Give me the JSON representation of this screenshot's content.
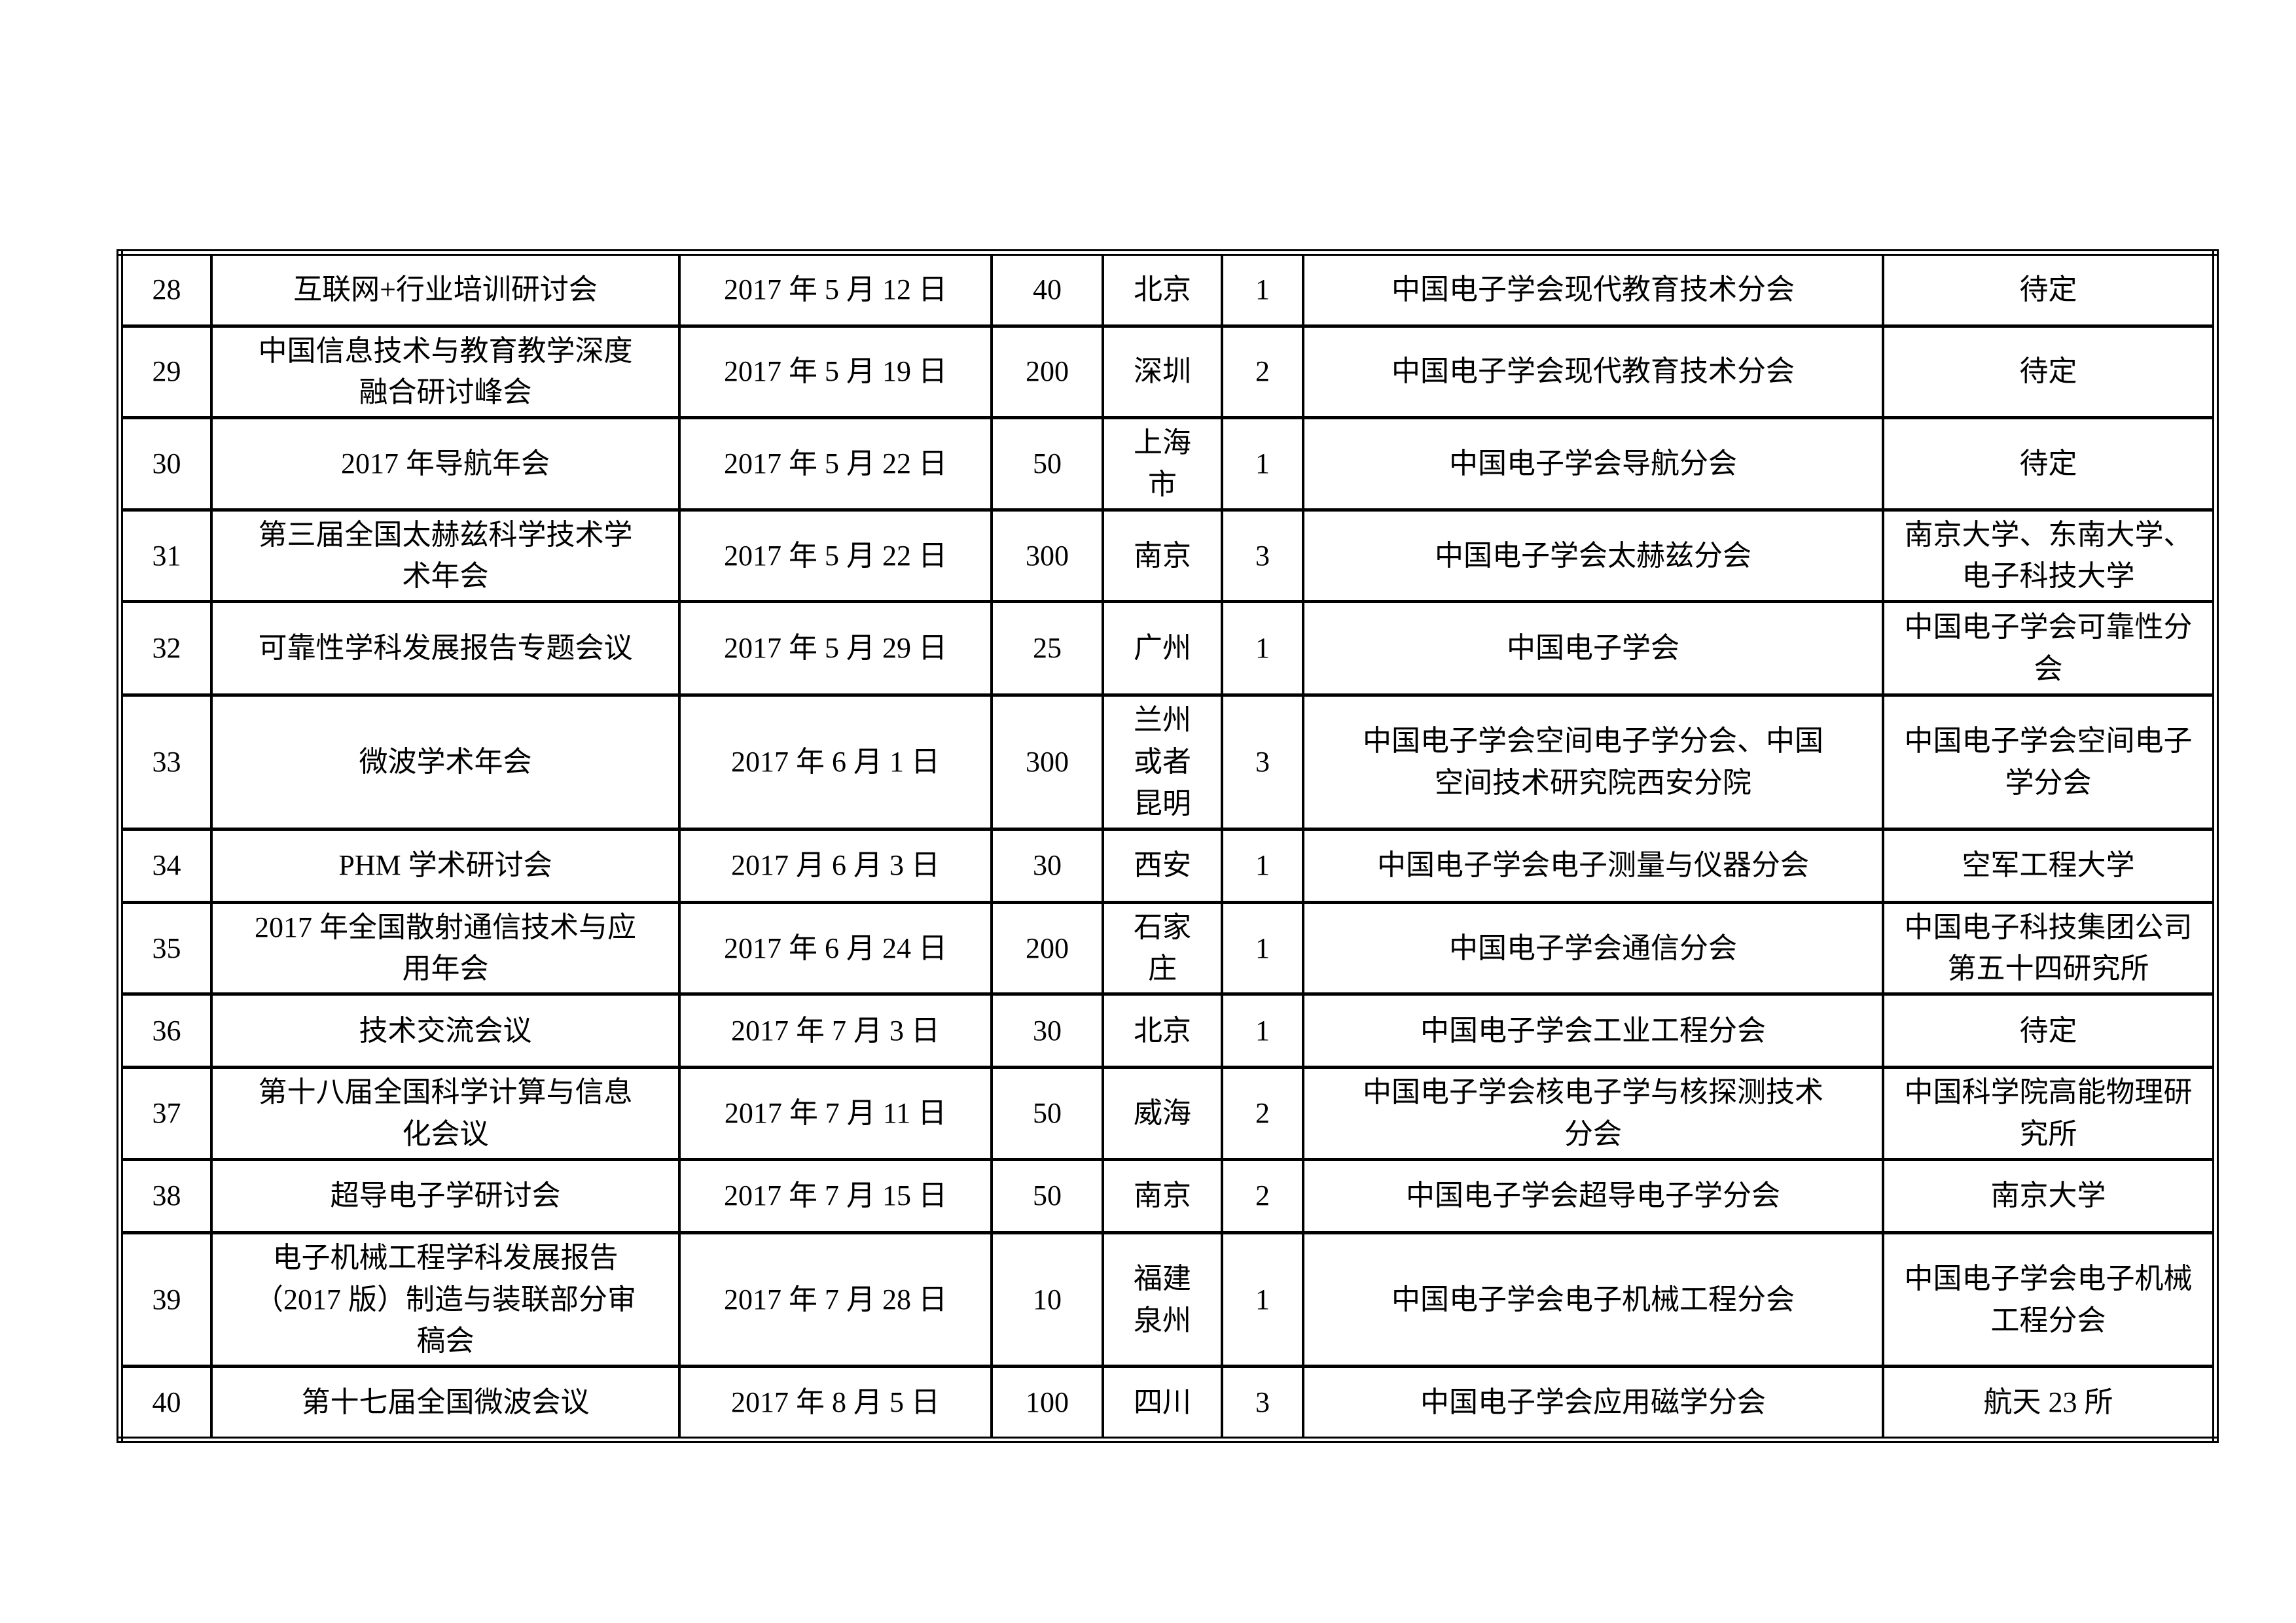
{
  "table": {
    "rows": [
      {
        "no": "28",
        "name": "互联网+行业培训研讨会",
        "date": "2017 年 5 月 12 日",
        "scale": "40",
        "city": "北京",
        "days": "1",
        "organizer": "中国电子学会现代教育技术分会",
        "support": "待定"
      },
      {
        "no": "29",
        "name": "中国信息技术与教育教学深度\n融合研讨峰会",
        "date": "2017 年 5 月 19 日",
        "scale": "200",
        "city": "深圳",
        "days": "2",
        "organizer": "中国电子学会现代教育技术分会",
        "support": "待定"
      },
      {
        "no": "30",
        "name": "2017 年导航年会",
        "date": "2017 年 5 月 22 日",
        "scale": "50",
        "city": "上海\n市",
        "days": "1",
        "organizer": "中国电子学会导航分会",
        "support": "待定"
      },
      {
        "no": "31",
        "name": "第三届全国太赫兹科学技术学\n术年会",
        "date": "2017 年 5 月 22 日",
        "scale": "300",
        "city": "南京",
        "days": "3",
        "organizer": "中国电子学会太赫兹分会",
        "support": "南京大学、东南大学、\n电子科技大学"
      },
      {
        "no": "32",
        "name": "可靠性学科发展报告专题会议",
        "date": "2017 年 5 月 29 日",
        "scale": "25",
        "city": "广州",
        "days": "1",
        "organizer": "中国电子学会",
        "support": "中国电子学会可靠性分\n会"
      },
      {
        "no": "33",
        "name": "微波学术年会",
        "date": "2017 年 6 月 1 日",
        "scale": "300",
        "city": "兰州\n或者\n昆明",
        "days": "3",
        "organizer": "中国电子学会空间电子学分会、中国\n空间技术研究院西安分院",
        "support": "中国电子学会空间电子\n学分会"
      },
      {
        "no": "34",
        "name": "PHM 学术研讨会",
        "date": "2017 月 6 月 3 日",
        "scale": "30",
        "city": "西安",
        "days": "1",
        "organizer": "中国电子学会电子测量与仪器分会",
        "support": "空军工程大学"
      },
      {
        "no": "35",
        "name": "2017 年全国散射通信技术与应\n用年会",
        "date": "2017 年 6 月 24 日",
        "scale": "200",
        "city": "石家\n庄",
        "days": "1",
        "organizer": "中国电子学会通信分会",
        "support": "中国电子科技集团公司\n第五十四研究所"
      },
      {
        "no": "36",
        "name": "技术交流会议",
        "date": "2017 年 7 月 3 日",
        "scale": "30",
        "city": "北京",
        "days": "1",
        "organizer": "中国电子学会工业工程分会",
        "support": "待定"
      },
      {
        "no": "37",
        "name": "第十八届全国科学计算与信息\n化会议",
        "date": "2017 年 7 月 11 日",
        "scale": "50",
        "city": "威海",
        "days": "2",
        "organizer": "中国电子学会核电子学与核探测技术\n分会",
        "support": "中国科学院高能物理研\n究所"
      },
      {
        "no": "38",
        "name": "超导电子学研讨会",
        "date": "2017 年 7 月 15 日",
        "scale": "50",
        "city": "南京",
        "days": "2",
        "organizer": "中国电子学会超导电子学分会",
        "support": "南京大学"
      },
      {
        "no": "39",
        "name": "电子机械工程学科发展报告\n（2017 版）制造与装联部分审\n稿会",
        "date": "2017 年 7 月 28 日",
        "scale": "10",
        "city": "福建\n泉州",
        "days": "1",
        "organizer": "中国电子学会电子机械工程分会",
        "support": "中国电子学会电子机械\n工程分会"
      },
      {
        "no": "40",
        "name": "第十七届全国微波会议",
        "date": "2017 年 8 月 5 日",
        "scale": "100",
        "city": "四川",
        "days": "3",
        "organizer": "中国电子学会应用磁学分会",
        "support": "航天 23 所"
      }
    ]
  }
}
